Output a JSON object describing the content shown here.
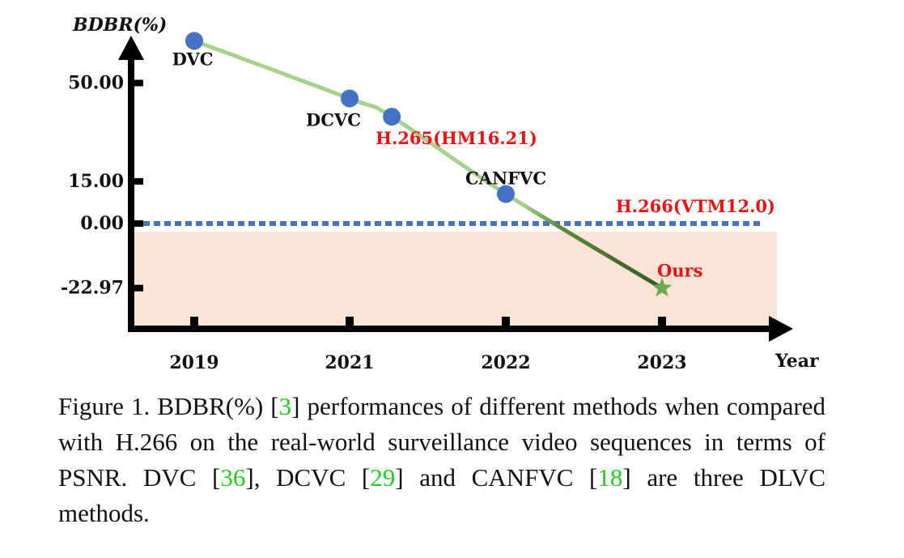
{
  "chart_data": {
    "type": "line",
    "ylabel": "BDBR(%)",
    "xlabel": "Year",
    "x_ticks": [
      "2019",
      "2021",
      "2022",
      "2023"
    ],
    "y_ticks": [
      "50.00",
      "15.00",
      "0.00",
      "-22.97"
    ],
    "y_tick_values": [
      50.0,
      15.0,
      0.0,
      -22.97
    ],
    "ylim": [
      -35,
      75
    ],
    "points": [
      {
        "label": "DVC",
        "x": 2019.0,
        "y": 65.0,
        "color": "#4472c4",
        "marker": "circle"
      },
      {
        "label": "DCVC",
        "x": 2021.0,
        "y": 44.5,
        "color": "#4472c4",
        "marker": "circle"
      },
      {
        "label": "H.265(HM16.21)",
        "x": 2021.27,
        "y": 38.0,
        "color": "#4472c4",
        "marker": "circle",
        "label_color": "#ee1111"
      },
      {
        "label": "CANFVC",
        "x": 2022.0,
        "y": 10.5,
        "color": "#4472c4",
        "marker": "circle"
      },
      {
        "label": "Ours",
        "x": 2023.0,
        "y": -22.97,
        "color": "#6aaa50",
        "marker": "star",
        "label_color": "#ee1111"
      }
    ],
    "reference_line": {
      "label": "H.266(VTM12.0)",
      "y": 0.0,
      "color": "#4472c4",
      "label_color": "#ee1111"
    },
    "improvement_region": {
      "color": "#fbe4d5"
    },
    "colors": {
      "curve_light": "#a9d18e",
      "curve_dark": "#385723"
    }
  },
  "caption": {
    "p1": "Figure 1. BDBR(%) [",
    "c1": "3",
    "p2": "] performances of different methods when compared with H.266 on the real-world surveillance video sequences in terms of PSNR. DVC [",
    "c2": "36",
    "p3": "], DCVC [",
    "c3": "29",
    "p4": "] and CANFVC [",
    "c4": "18",
    "p5": "] are three DLVC methods."
  }
}
